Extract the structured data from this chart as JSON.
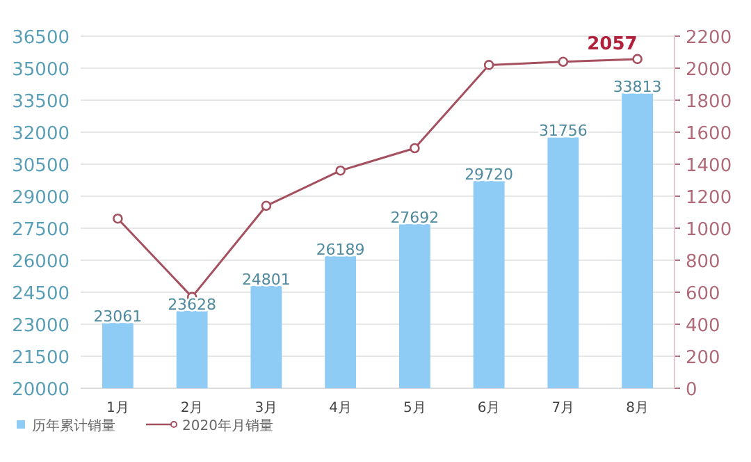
{
  "chart_data": {
    "type": "bar",
    "categories": [
      "1月",
      "2月",
      "3月",
      "4月",
      "5月",
      "6月",
      "7月",
      "8月"
    ],
    "series": [
      {
        "name": "历年累计销量",
        "color": "#8ecbf5",
        "values": [
          23061,
          23628,
          24801,
          26189,
          27692,
          29720,
          31756,
          33813
        ],
        "value_labels": [
          "23061",
          "23628",
          "24801",
          "26189",
          "27692",
          "29720",
          "31756",
          "33813"
        ]
      },
      {
        "name": "2020年月销量",
        "type": "line",
        "axis": "y2",
        "color": "#a5505f",
        "values": [
          1060,
          570,
          1140,
          1360,
          1500,
          2020,
          2040,
          2057
        ],
        "value_labels": [
          null,
          null,
          null,
          null,
          null,
          null,
          null,
          "2057"
        ]
      }
    ],
    "ylim": [
      20000,
      36500
    ],
    "yticks": [
      20000,
      21500,
      23000,
      24500,
      26000,
      27500,
      29000,
      30500,
      32000,
      33500,
      35000,
      36500
    ],
    "y2lim": [
      0,
      2200
    ],
    "y2ticks": [
      0,
      200,
      400,
      600,
      800,
      1000,
      1200,
      1400,
      1600,
      1800,
      2000,
      2200
    ],
    "grid": "y",
    "legend": "bottom left",
    "marker": "circle"
  }
}
